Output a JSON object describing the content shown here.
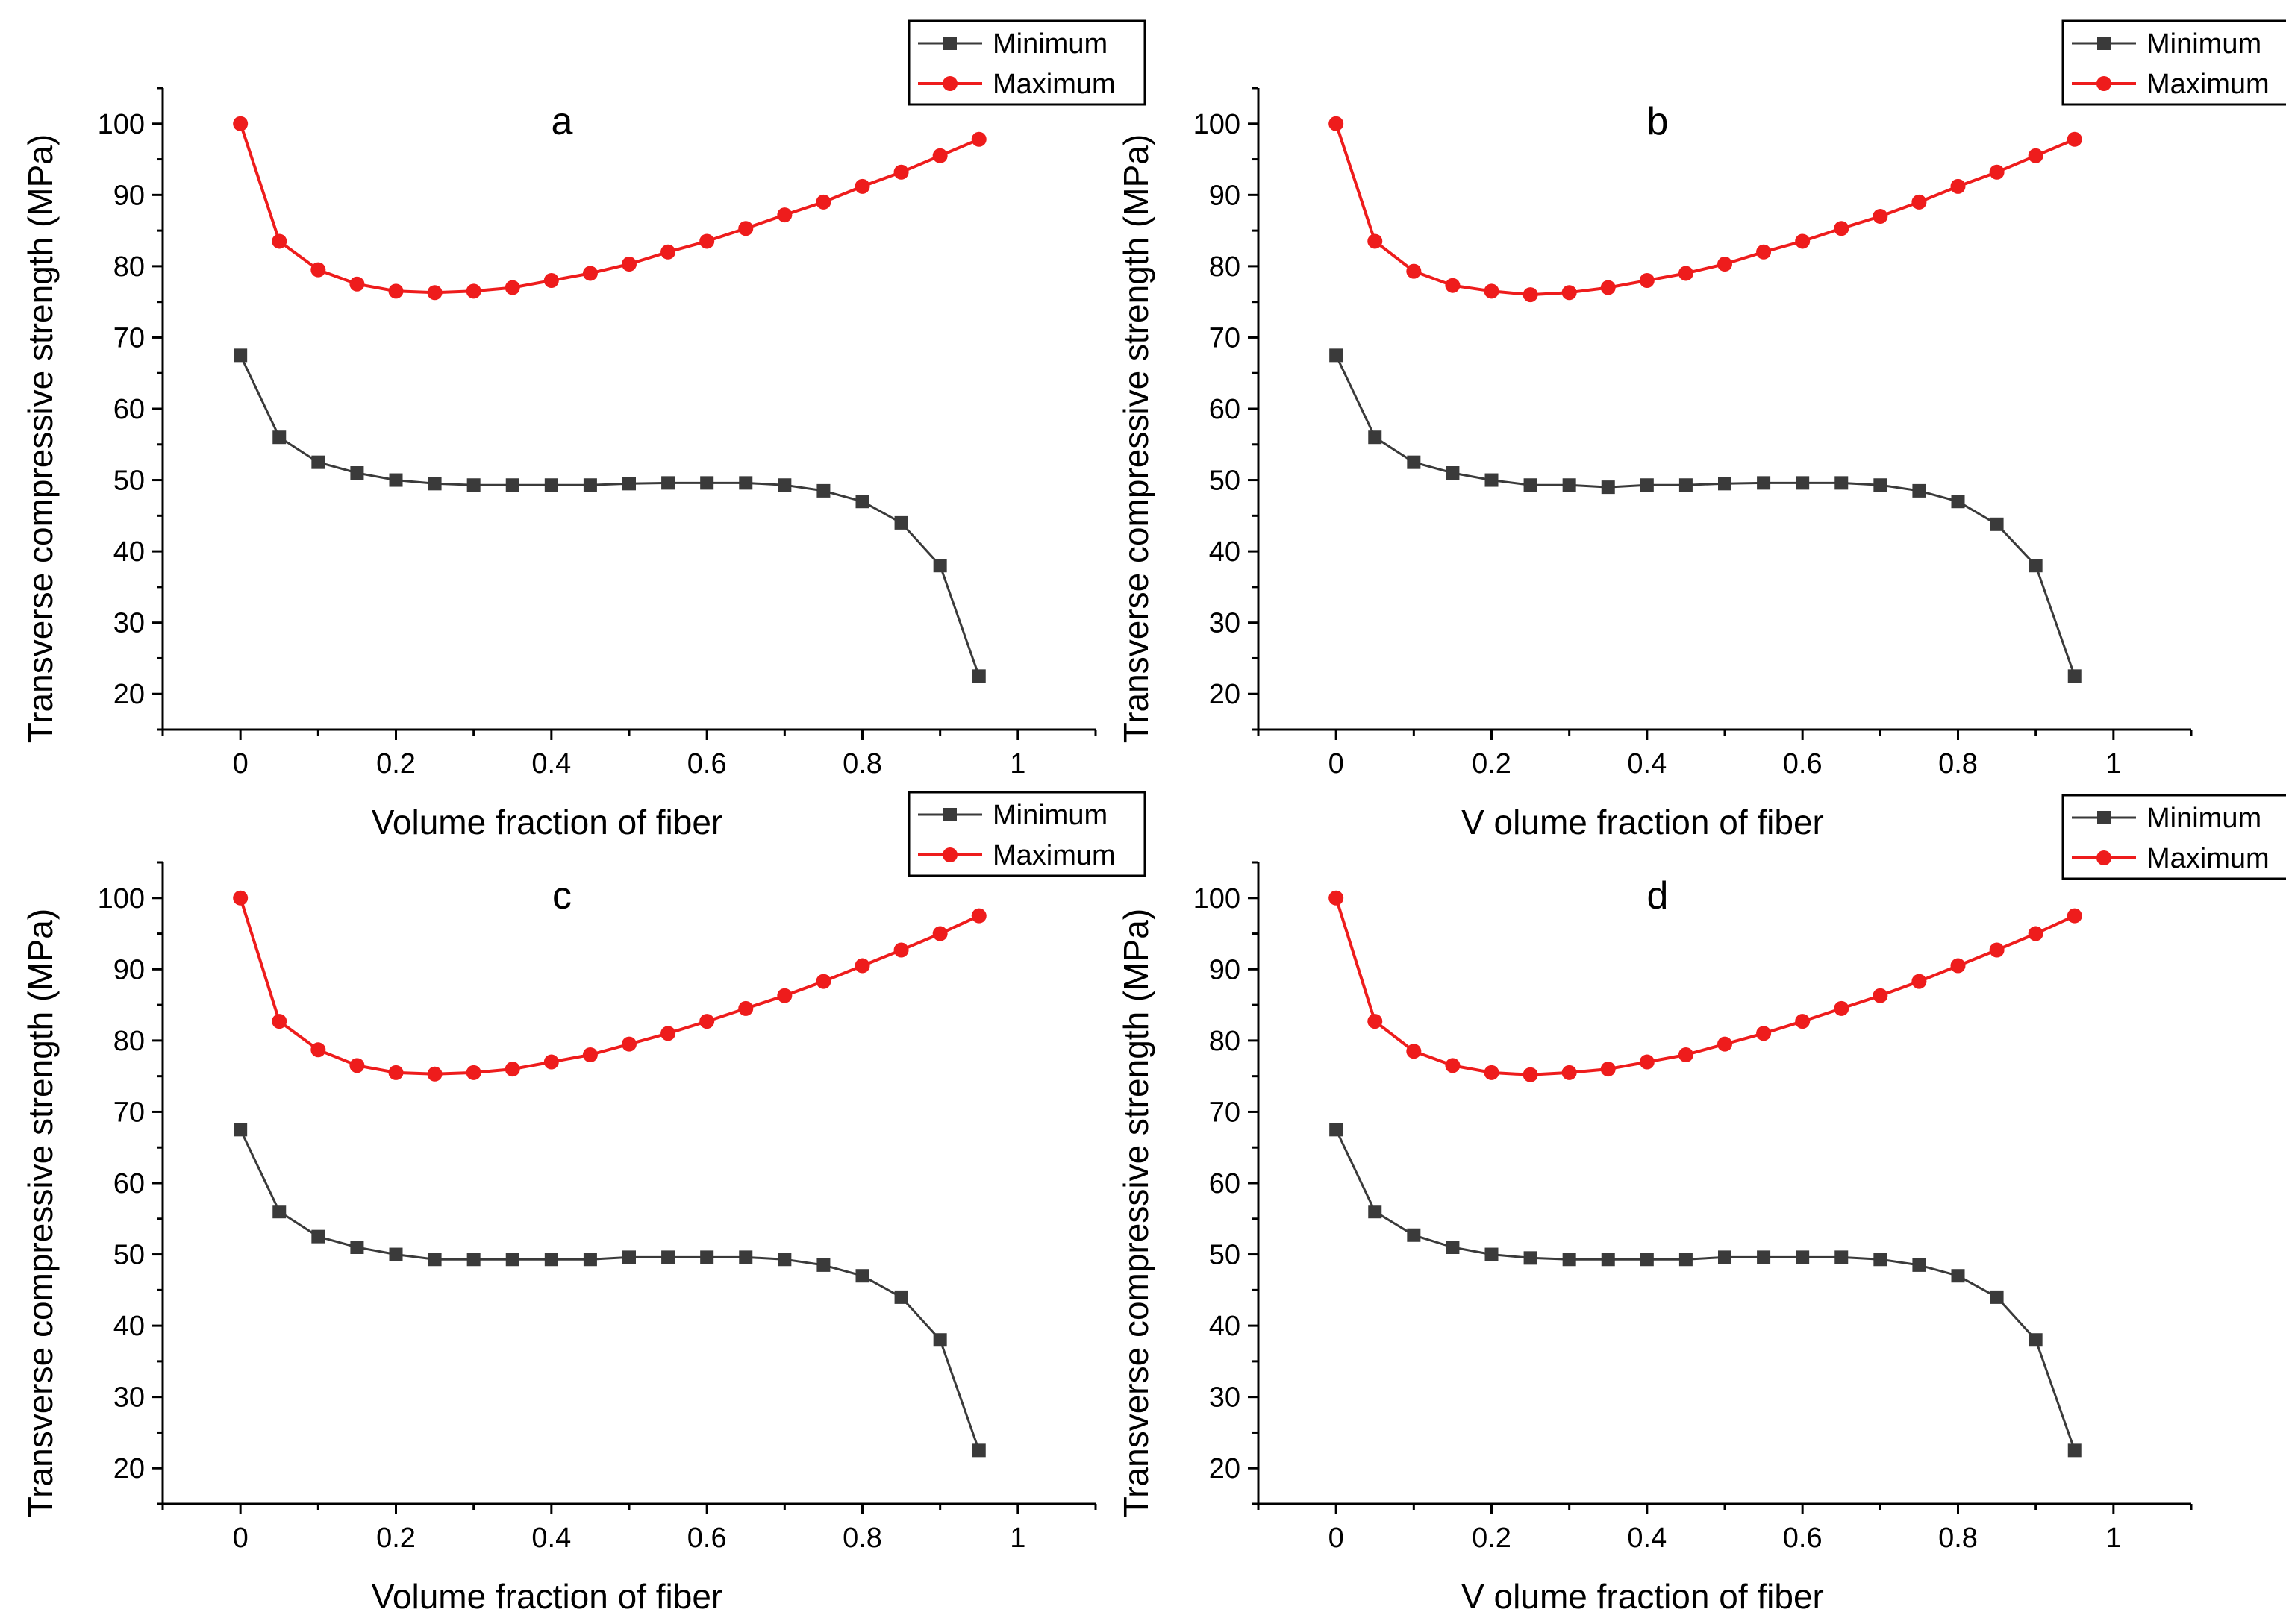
{
  "colors": {
    "minimum": "#3a3a3a",
    "maximum": "#ee1c1c",
    "axis": "#000000",
    "background": "#ffffff"
  },
  "series_names": {
    "minimum": "Minimum",
    "maximum": "Maximum"
  },
  "chart_data": [
    {
      "type": "line",
      "panel": "a",
      "xlabel": "Volume fraction of fiber",
      "ylabel": "Transverse compressive strength (MPa)",
      "xlim": [
        -0.1,
        1.1
      ],
      "ylim": [
        15,
        105
      ],
      "xticks": [
        0,
        0.2,
        0.4,
        0.6,
        0.8,
        1
      ],
      "xtick_labels": [
        "0",
        "0.2",
        "0.4",
        "0.6",
        "0.8",
        "1"
      ],
      "yticks": [
        20,
        30,
        40,
        50,
        60,
        70,
        80,
        90,
        100
      ],
      "ytick_labels": [
        "20",
        "30",
        "40",
        "50",
        "60",
        "70",
        "80",
        "90",
        "100"
      ],
      "legend": [
        "Minimum",
        "Maximum"
      ],
      "legend_position": "top-right",
      "x": [
        0,
        0.05,
        0.1,
        0.15,
        0.2,
        0.25,
        0.3,
        0.35,
        0.4,
        0.45,
        0.5,
        0.55,
        0.6,
        0.65,
        0.7,
        0.75,
        0.8,
        0.85,
        0.9,
        0.95
      ],
      "series": [
        {
          "name": "Minimum",
          "values": [
            67.5,
            56,
            52.5,
            51,
            50,
            49.5,
            49.3,
            49.3,
            49.3,
            49.3,
            49.5,
            49.6,
            49.6,
            49.6,
            49.3,
            48.5,
            47,
            44,
            38,
            22.5
          ]
        },
        {
          "name": "Maximum",
          "values": [
            100,
            83.5,
            79.5,
            77.5,
            76.5,
            76.3,
            76.5,
            77,
            78,
            79,
            80.3,
            82,
            83.5,
            85.3,
            87.2,
            89,
            91.2,
            93.2,
            95.5,
            97.8
          ]
        }
      ]
    },
    {
      "type": "line",
      "panel": "b",
      "xlabel": "V olume fraction of fiber",
      "ylabel": "Transverse compressive strength (MPa)",
      "xlim": [
        -0.1,
        1.1
      ],
      "ylim": [
        15,
        105
      ],
      "xticks": [
        0,
        0.2,
        0.4,
        0.6,
        0.8,
        1
      ],
      "xtick_labels": [
        "0",
        "0.2",
        "0.4",
        "0.6",
        "0.8",
        "1"
      ],
      "yticks": [
        20,
        30,
        40,
        50,
        60,
        70,
        80,
        90,
        100
      ],
      "ytick_labels": [
        "20",
        "30",
        "40",
        "50",
        "60",
        "70",
        "80",
        "90",
        "100"
      ],
      "legend": [
        "Minimum",
        "Maximum"
      ],
      "legend_position": "top-right",
      "x": [
        0,
        0.05,
        0.1,
        0.15,
        0.2,
        0.25,
        0.3,
        0.35,
        0.4,
        0.45,
        0.5,
        0.55,
        0.6,
        0.65,
        0.7,
        0.75,
        0.8,
        0.85,
        0.9,
        0.95
      ],
      "series": [
        {
          "name": "Minimum",
          "values": [
            67.5,
            56,
            52.5,
            51,
            50,
            49.3,
            49.3,
            49,
            49.3,
            49.3,
            49.5,
            49.6,
            49.6,
            49.6,
            49.3,
            48.5,
            47,
            43.8,
            38,
            22.5
          ]
        },
        {
          "name": "Maximum",
          "values": [
            100,
            83.5,
            79.3,
            77.3,
            76.5,
            76,
            76.3,
            77,
            78,
            79,
            80.3,
            82,
            83.5,
            85.3,
            87,
            89,
            91.2,
            93.2,
            95.5,
            97.8
          ]
        }
      ]
    },
    {
      "type": "line",
      "panel": "c",
      "xlabel": "Volume fraction of fiber",
      "ylabel": "Transverse compressive strength (MPa)",
      "xlim": [
        -0.1,
        1.1
      ],
      "ylim": [
        15,
        105
      ],
      "xticks": [
        0,
        0.2,
        0.4,
        0.6,
        0.8,
        1
      ],
      "xtick_labels": [
        "0",
        "0.2",
        "0.4",
        "0.6",
        "0.8",
        "1"
      ],
      "yticks": [
        20,
        30,
        40,
        50,
        60,
        70,
        80,
        90,
        100
      ],
      "ytick_labels": [
        "20",
        "30",
        "40",
        "50",
        "60",
        "70",
        "80",
        "90",
        "100"
      ],
      "legend": [
        "Minimum",
        "Maximum"
      ],
      "legend_position": "top-right",
      "x": [
        0,
        0.05,
        0.1,
        0.15,
        0.2,
        0.25,
        0.3,
        0.35,
        0.4,
        0.45,
        0.5,
        0.55,
        0.6,
        0.65,
        0.7,
        0.75,
        0.8,
        0.85,
        0.9,
        0.95
      ],
      "series": [
        {
          "name": "Minimum",
          "values": [
            67.5,
            56,
            52.5,
            51,
            50,
            49.3,
            49.3,
            49.3,
            49.3,
            49.3,
            49.6,
            49.6,
            49.6,
            49.6,
            49.3,
            48.5,
            47,
            44,
            38,
            22.5
          ]
        },
        {
          "name": "Maximum",
          "values": [
            100,
            82.7,
            78.7,
            76.5,
            75.5,
            75.3,
            75.5,
            76,
            77,
            78,
            79.5,
            81,
            82.7,
            84.5,
            86.3,
            88.3,
            90.5,
            92.7,
            95,
            97.5
          ]
        }
      ]
    },
    {
      "type": "line",
      "panel": "d",
      "xlabel": "V olume fraction of fiber",
      "ylabel": "Transverse compressive strength (MPa)",
      "xlim": [
        -0.1,
        1.1
      ],
      "ylim": [
        15,
        105
      ],
      "xticks": [
        0,
        0.2,
        0.4,
        0.6,
        0.8,
        1
      ],
      "xtick_labels": [
        "0",
        "0.2",
        "0.4",
        "0.6",
        "0.8",
        "1"
      ],
      "yticks": [
        20,
        30,
        40,
        50,
        60,
        70,
        80,
        90,
        100
      ],
      "ytick_labels": [
        "20",
        "30",
        "40",
        "50",
        "60",
        "70",
        "80",
        "90",
        "100"
      ],
      "legend": [
        "Minimum",
        "Maximum"
      ],
      "legend_position": "top-right",
      "x": [
        0,
        0.05,
        0.1,
        0.15,
        0.2,
        0.25,
        0.3,
        0.35,
        0.4,
        0.45,
        0.5,
        0.55,
        0.6,
        0.65,
        0.7,
        0.75,
        0.8,
        0.85,
        0.9,
        0.95
      ],
      "series": [
        {
          "name": "Minimum",
          "values": [
            67.5,
            56,
            52.7,
            51,
            50,
            49.5,
            49.3,
            49.3,
            49.3,
            49.3,
            49.6,
            49.6,
            49.6,
            49.6,
            49.3,
            48.5,
            47,
            44,
            38,
            22.5
          ]
        },
        {
          "name": "Maximum",
          "values": [
            100,
            82.7,
            78.5,
            76.5,
            75.5,
            75.2,
            75.5,
            76,
            77,
            78,
            79.5,
            81,
            82.7,
            84.5,
            86.3,
            88.3,
            90.5,
            92.7,
            95,
            97.5
          ]
        }
      ]
    }
  ]
}
